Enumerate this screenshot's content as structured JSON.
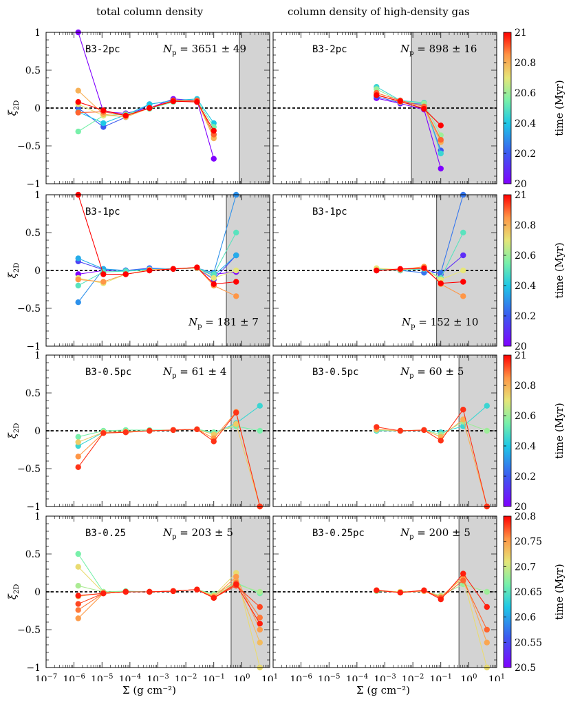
{
  "column_titles": [
    "total column density",
    "column density of high-density gas"
  ],
  "x_axis_label": "Σ (g cm⁻²)",
  "y_axis_label": "ξ2D",
  "colorbar_label": "time (Myr)",
  "x_tick_labels": [
    "10⁻⁷",
    "10⁻⁶",
    "10⁻⁵",
    "10⁻⁴",
    "10⁻³",
    "10⁻²",
    "10⁻¹",
    "10⁰",
    "10¹"
  ],
  "y_tick_labels": [
    "1",
    "0.5",
    "0",
    "−0.5",
    "−1"
  ],
  "colorbar_ticks": [
    {
      "range": [
        20,
        21
      ],
      "ticks": [
        "20",
        "20.2",
        "20.4",
        "20.6",
        "20.8",
        "21"
      ]
    },
    {
      "range": [
        20,
        21
      ],
      "ticks": [
        "20",
        "20.2",
        "20.4",
        "20.6",
        "20.8",
        "21"
      ]
    },
    {
      "range": [
        20,
        21
      ],
      "ticks": [
        "20",
        "20.2",
        "20.4",
        "20.6",
        "20.8",
        "21"
      ]
    },
    {
      "range": [
        20.5,
        20.8
      ],
      "ticks": [
        "20.5",
        "20.55",
        "20.6",
        "20.65",
        "20.7",
        "20.75",
        "20.8"
      ]
    }
  ],
  "chart_data": [
    {
      "type": "line",
      "panel": "row1-left",
      "model": "B3-2pc",
      "np_text": "3651 ± 49",
      "x_log_range": [
        -7,
        1
      ],
      "ylim": [
        -1,
        1
      ],
      "shaded_from_log": -0.08,
      "x_log": [
        -5.85,
        -4.95,
        -4.15,
        -3.3,
        -2.45,
        -1.6,
        -1.0
      ],
      "series": [
        {
          "t": 0.0,
          "values": [
            1.0,
            -0.05,
            -0.07,
            0.0,
            0.12,
            0.1,
            -0.67
          ]
        },
        {
          "t": 0.2,
          "values": [
            0.0,
            -0.25,
            -0.12,
            0.05,
            0.1,
            0.08,
            -0.35
          ]
        },
        {
          "t": 0.4,
          "values": [
            -0.05,
            -0.2,
            -0.09,
            0.05,
            0.1,
            0.12,
            -0.2
          ]
        },
        {
          "t": 0.55,
          "values": [
            -0.31,
            -0.1,
            -0.08,
            -0.01,
            0.08,
            0.1,
            -0.25
          ]
        },
        {
          "t": 0.7,
          "values": [
            0.05,
            -0.1,
            -0.11,
            0.0,
            0.09,
            0.1,
            -0.38
          ]
        },
        {
          "t": 0.8,
          "values": [
            0.23,
            -0.08,
            -0.12,
            0.0,
            0.09,
            0.09,
            -0.4
          ]
        },
        {
          "t": 0.9,
          "values": [
            -0.06,
            -0.05,
            -0.1,
            0.0,
            0.1,
            0.1,
            -0.35
          ]
        },
        {
          "t": 1.0,
          "values": [
            0.08,
            -0.03,
            -0.1,
            0.0,
            0.09,
            0.08,
            -0.3
          ]
        }
      ]
    },
    {
      "type": "line",
      "panel": "row1-right",
      "model": "B3-2pc",
      "np_text": "898 ± 16",
      "x_log_range": [
        -7,
        1
      ],
      "ylim": [
        -1,
        1
      ],
      "shaded_from_log": -2.05,
      "x_log": [
        -3.3,
        -2.45,
        -1.6,
        -1.0
      ],
      "series": [
        {
          "t": 0.0,
          "values": [
            0.13,
            0.06,
            -0.02,
            -0.8
          ]
        },
        {
          "t": 0.2,
          "values": [
            0.15,
            0.07,
            0.05,
            -0.56
          ]
        },
        {
          "t": 0.45,
          "values": [
            0.28,
            0.1,
            0.07,
            -0.6
          ]
        },
        {
          "t": 0.6,
          "values": [
            0.25,
            0.09,
            0.06,
            -0.36
          ]
        },
        {
          "t": 0.8,
          "values": [
            0.18,
            0.08,
            0.0,
            -0.45
          ]
        },
        {
          "t": 0.9,
          "values": [
            0.2,
            0.1,
            0.02,
            -0.42
          ]
        },
        {
          "t": 1.0,
          "values": [
            0.17,
            0.09,
            -0.01,
            -0.23
          ]
        }
      ]
    },
    {
      "type": "line",
      "panel": "row2-left",
      "model": "B3-1pc",
      "np_text": "181 ± 7",
      "x_log_range": [
        -7,
        1
      ],
      "ylim": [
        -1,
        1
      ],
      "shaded_from_log": -0.55,
      "x_log": [
        -5.85,
        -4.95,
        -4.15,
        -3.3,
        -2.45,
        -1.6,
        -1.0,
        -0.2
      ],
      "series": [
        {
          "t": 0.0,
          "values": [
            -0.05,
            0.0,
            0.0,
            0.02,
            0.02,
            0.03,
            -0.05,
            -0.02
          ]
        },
        {
          "t": 0.15,
          "values": [
            0.12,
            0.01,
            0.0,
            0.03,
            0.02,
            0.03,
            -0.12,
            0.2
          ]
        },
        {
          "t": 0.3,
          "values": [
            -0.42,
            0.02,
            0.0,
            0.02,
            0.02,
            0.03,
            -0.03,
            1.0
          ]
        },
        {
          "t": 0.35,
          "values": [
            0.16,
            0.02,
            -0.01,
            0.02,
            0.02,
            0.03,
            -0.07,
            0.2
          ]
        },
        {
          "t": 0.5,
          "values": [
            -0.2,
            -0.02,
            -0.01,
            0.01,
            0.02,
            0.03,
            -0.05,
            0.5
          ]
        },
        {
          "t": 0.7,
          "values": [
            -0.1,
            -0.17,
            -0.05,
            0.01,
            0.02,
            0.03,
            -0.1,
            0.0
          ]
        },
        {
          "t": 0.85,
          "values": [
            -0.12,
            -0.15,
            -0.05,
            0.0,
            0.02,
            0.04,
            -0.2,
            -0.34
          ]
        },
        {
          "t": 1.0,
          "values": [
            1.0,
            -0.05,
            -0.05,
            0.0,
            0.02,
            0.04,
            -0.18,
            -0.15
          ]
        }
      ]
    },
    {
      "type": "line",
      "panel": "row2-right",
      "model": "B3-1pc",
      "np_text": "152 ± 10",
      "x_log_range": [
        -7,
        1
      ],
      "ylim": [
        -1,
        1
      ],
      "shaded_from_log": -1.15,
      "x_log": [
        -3.3,
        -2.45,
        -1.6,
        -1.0,
        -0.2
      ],
      "series": [
        {
          "t": 0.1,
          "values": [
            0.0,
            0.01,
            0.02,
            -0.05,
            0.2
          ]
        },
        {
          "t": 0.25,
          "values": [
            0.01,
            0.0,
            -0.03,
            -0.03,
            1.0
          ]
        },
        {
          "t": 0.5,
          "values": [
            0.02,
            0.0,
            0.02,
            -0.1,
            0.5
          ]
        },
        {
          "t": 0.7,
          "values": [
            0.03,
            0.01,
            0.03,
            -0.12,
            0.0
          ]
        },
        {
          "t": 0.85,
          "values": [
            0.0,
            0.01,
            0.05,
            -0.18,
            -0.34
          ]
        },
        {
          "t": 1.0,
          "values": [
            0.0,
            0.02,
            0.03,
            -0.17,
            -0.15
          ]
        }
      ]
    },
    {
      "type": "line",
      "panel": "row3-left",
      "model": "B3-0.5pc",
      "np_text": "61 ± 4",
      "x_log_range": [
        -7,
        1
      ],
      "ylim": [
        -1,
        1
      ],
      "shaded_from_log": -0.38,
      "x_log": [
        -5.85,
        -4.95,
        -4.15,
        -3.3,
        -2.45,
        -1.6,
        -1.0,
        -0.2,
        0.65
      ],
      "series": [
        {
          "t": 0.45,
          "values": [
            -0.2,
            -0.02,
            -0.01,
            0.0,
            0.01,
            0.02,
            -0.03,
            0.1,
            0.33
          ]
        },
        {
          "t": 0.55,
          "values": [
            -0.08,
            0.0,
            0.01,
            0.01,
            0.01,
            0.02,
            -0.02,
            0.06,
            0.0
          ]
        },
        {
          "t": 0.75,
          "values": [
            -0.15,
            -0.02,
            -0.01,
            0.0,
            0.01,
            0.02,
            -0.05,
            0.09,
            -1.0
          ]
        },
        {
          "t": 0.85,
          "values": [
            -0.34,
            -0.03,
            -0.02,
            0.0,
            0.01,
            0.02,
            -0.1,
            0.25,
            -1.0
          ]
        },
        {
          "t": 0.95,
          "values": [
            -0.48,
            -0.03,
            -0.02,
            0.0,
            0.01,
            0.02,
            -0.14,
            0.24,
            -1.0
          ]
        }
      ]
    },
    {
      "type": "line",
      "panel": "row3-right",
      "model": "B3-0.5pc",
      "np_text": "60 ± 5",
      "x_log_range": [
        -7,
        1
      ],
      "ylim": [
        -1,
        1
      ],
      "shaded_from_log": -0.35,
      "x_log": [
        -3.3,
        -2.45,
        -1.6,
        -1.0,
        -0.2,
        0.65
      ],
      "series": [
        {
          "t": 0.45,
          "values": [
            0.0,
            0.0,
            0.01,
            -0.02,
            0.06,
            0.33
          ]
        },
        {
          "t": 0.6,
          "values": [
            0.01,
            0.0,
            0.01,
            -0.05,
            0.12,
            0.0
          ]
        },
        {
          "t": 0.8,
          "values": [
            0.02,
            0.0,
            0.01,
            -0.08,
            0.15,
            -1.0
          ]
        },
        {
          "t": 0.95,
          "values": [
            0.05,
            0.0,
            0.01,
            -0.13,
            0.28,
            -1.0
          ]
        }
      ]
    },
    {
      "type": "line",
      "panel": "row4-left",
      "model": "B3-0.25",
      "np_text": "203 ± 5",
      "x_log_range": [
        -7,
        1
      ],
      "ylim": [
        -1,
        1
      ],
      "shaded_from_log": -0.38,
      "x_log": [
        -5.85,
        -4.95,
        -4.15,
        -3.3,
        -2.45,
        -1.6,
        -1.0,
        -0.2,
        0.65
      ],
      "series": [
        {
          "t": 0.55,
          "values": [
            0.5,
            0.0,
            0.01,
            0.0,
            0.01,
            0.03,
            -0.03,
            0.12,
            -0.02
          ]
        },
        {
          "t": 0.62,
          "values": [
            0.08,
            0.0,
            0.0,
            0.0,
            0.01,
            0.03,
            -0.05,
            0.1,
            0.0
          ]
        },
        {
          "t": 0.72,
          "values": [
            0.33,
            -0.01,
            0.0,
            0.0,
            0.01,
            0.03,
            -0.05,
            0.25,
            -1.0
          ]
        },
        {
          "t": 0.78,
          "values": [
            -0.06,
            -0.02,
            0.0,
            0.0,
            0.01,
            0.03,
            -0.06,
            0.15,
            -0.67
          ]
        },
        {
          "t": 0.84,
          "values": [
            -0.35,
            -0.02,
            0.0,
            0.0,
            0.01,
            0.03,
            -0.07,
            0.2,
            -0.5
          ]
        },
        {
          "t": 0.88,
          "values": [
            -0.24,
            -0.02,
            0.0,
            0.0,
            0.01,
            0.03,
            -0.08,
            0.12,
            -0.34
          ]
        },
        {
          "t": 0.93,
          "values": [
            -0.16,
            -0.02,
            0.0,
            0.0,
            0.01,
            0.03,
            -0.08,
            0.08,
            -0.2
          ]
        },
        {
          "t": 0.97,
          "values": [
            -0.05,
            -0.02,
            0.0,
            0.0,
            0.01,
            0.03,
            -0.08,
            0.1,
            -0.42
          ]
        }
      ]
    },
    {
      "type": "line",
      "panel": "row4-right",
      "model": "B3-0.25pc",
      "np_text": "200 ± 5",
      "x_log_range": [
        -7,
        1
      ],
      "ylim": [
        -1,
        1
      ],
      "shaded_from_log": -0.35,
      "x_log": [
        -3.3,
        -2.45,
        -1.6,
        -1.0,
        -0.2,
        0.65
      ],
      "series": [
        {
          "t": 0.6,
          "values": [
            0.01,
            0.0,
            0.01,
            -0.05,
            0.1,
            0.0
          ]
        },
        {
          "t": 0.72,
          "values": [
            0.02,
            0.0,
            0.01,
            -0.06,
            0.18,
            -1.0
          ]
        },
        {
          "t": 0.82,
          "values": [
            0.02,
            -0.01,
            0.01,
            -0.07,
            0.2,
            -0.67
          ]
        },
        {
          "t": 0.9,
          "values": [
            0.02,
            -0.01,
            0.02,
            -0.08,
            0.15,
            -0.5
          ]
        },
        {
          "t": 0.97,
          "values": [
            0.02,
            -0.01,
            0.02,
            -0.1,
            0.24,
            -0.2
          ]
        }
      ]
    }
  ]
}
